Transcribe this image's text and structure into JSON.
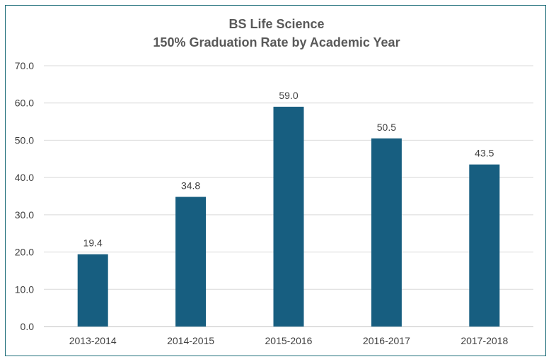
{
  "chart_data": {
    "type": "bar",
    "title": "BS Life Science",
    "subtitle": "150% Graduation Rate by Academic Year",
    "categories": [
      "2013-2014",
      "2014-2015",
      "2015-2016",
      "2016-2017",
      "2017-2018"
    ],
    "values": [
      19.4,
      34.8,
      59.0,
      50.5,
      43.5
    ],
    "data_labels": [
      "19.4",
      "34.8",
      "59.0",
      "50.5",
      "43.5"
    ],
    "y_ticks": [
      0,
      10,
      20,
      30,
      40,
      50,
      60,
      70
    ],
    "y_tick_labels": [
      "0.0",
      "10.0",
      "20.0",
      "30.0",
      "40.0",
      "50.0",
      "60.0",
      "70.0"
    ],
    "ylim": [
      0,
      70
    ],
    "xlabel": "",
    "ylabel": "",
    "grid": true,
    "legend": "none",
    "bar_color": "#175e80",
    "border_color": "#1f6e7a"
  }
}
